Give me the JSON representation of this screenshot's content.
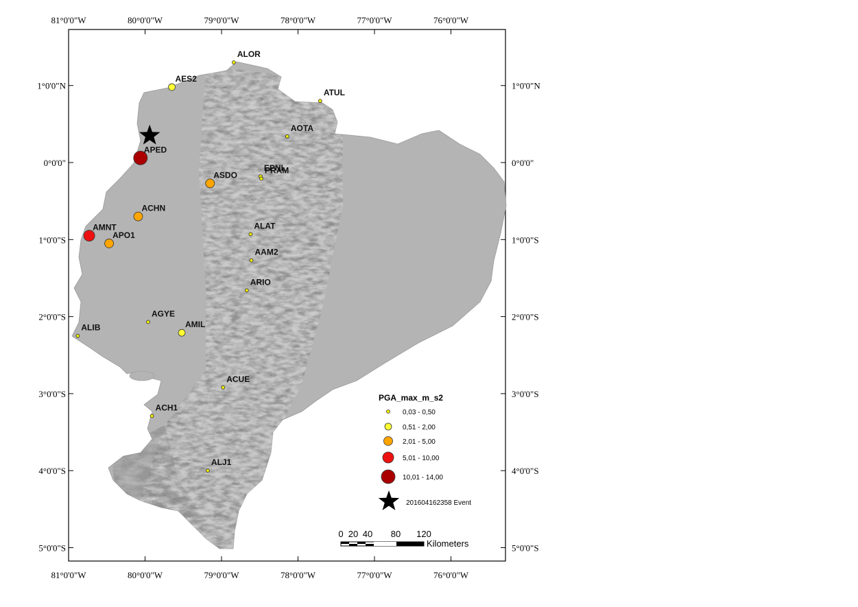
{
  "map": {
    "graticule_lon": [
      "81°0'0\"W",
      "80°0'0\"W",
      "79°0'0\"W",
      "78°0'0\"W",
      "77°0'0\"W",
      "76°0'0\"W"
    ],
    "graticule_lat": [
      "1°0'0\"N",
      "0°0'0\"",
      "1°0'0\"S",
      "2°0'0\"S",
      "3°0'0\"S",
      "4°0'0\"S",
      "5°0'0\"S"
    ]
  },
  "stations": [
    {
      "code": "ALOR",
      "lon": -78.84,
      "lat": 1.3,
      "class": 1
    },
    {
      "code": "AES2",
      "lon": -79.65,
      "lat": 0.98,
      "class": 2
    },
    {
      "code": "ATUL",
      "lon": -77.71,
      "lat": 0.8,
      "class": 1
    },
    {
      "code": "AOTA",
      "lon": -78.14,
      "lat": 0.34,
      "class": 1
    },
    {
      "code": "APED",
      "lon": -80.06,
      "lat": 0.06,
      "class": 5
    },
    {
      "code": "EPNL",
      "lon": -78.49,
      "lat": -0.18,
      "class": 1
    },
    {
      "code": "PRAM",
      "lon": -78.48,
      "lat": -0.21,
      "class": 1
    },
    {
      "code": "ASDO",
      "lon": -79.15,
      "lat": -0.27,
      "class": 3
    },
    {
      "code": "ACHN",
      "lon": -80.09,
      "lat": -0.7,
      "class": 3
    },
    {
      "code": "AMNT",
      "lon": -80.73,
      "lat": -0.95,
      "class": 4
    },
    {
      "code": "APO1",
      "lon": -80.47,
      "lat": -1.05,
      "class": 3
    },
    {
      "code": "ALAT",
      "lon": -78.62,
      "lat": -0.93,
      "class": 1
    },
    {
      "code": "AAM2",
      "lon": -78.61,
      "lat": -1.27,
      "class": 1
    },
    {
      "code": "ARIO",
      "lon": -78.67,
      "lat": -1.66,
      "class": 1
    },
    {
      "code": "AGYE",
      "lon": -79.96,
      "lat": -2.07,
      "class": 1
    },
    {
      "code": "AMIL",
      "lon": -79.52,
      "lat": -2.21,
      "class": 2
    },
    {
      "code": "ALIB",
      "lon": -80.88,
      "lat": -2.25,
      "class": 1
    },
    {
      "code": "ACUE",
      "lon": -78.98,
      "lat": -2.92,
      "class": 1
    },
    {
      "code": "ACH1",
      "lon": -79.91,
      "lat": -3.29,
      "class": 1
    },
    {
      "code": "ALJ1",
      "lon": -79.18,
      "lat": -4.0,
      "class": 1
    }
  ],
  "event": {
    "lon": -79.94,
    "lat": 0.35
  },
  "legend": {
    "title": "PGA_max_m_s2",
    "classes": [
      {
        "label": "0,03 - 0,50",
        "color": "#f0f000"
      },
      {
        "label": "0,51 - 2,00",
        "color": "#ffff33"
      },
      {
        "label": "2,01 - 5,00",
        "color": "#ffa500"
      },
      {
        "label": "5,01 - 10,00",
        "color": "#ee1111"
      },
      {
        "label": "10,01 - 14,00",
        "color": "#aa0000"
      }
    ],
    "event_label": "201604162358 Event"
  },
  "scalebar": {
    "ticks": [
      "0",
      "20",
      "40",
      "80",
      "120"
    ],
    "unit": "Kilometers"
  },
  "colors": {
    "land": "#b4b4b4",
    "ridge_dark": "#8a8a8a",
    "ridge_light": "#d2d2d2"
  }
}
